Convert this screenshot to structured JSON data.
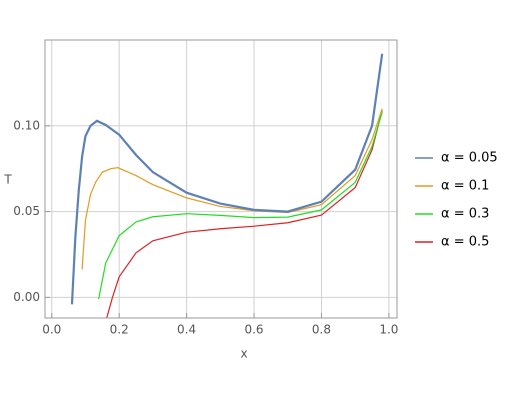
{
  "chart_data": {
    "type": "line",
    "xlabel": "x",
    "ylabel": "T",
    "xlim": [
      -0.02,
      1.024
    ],
    "ylim": [
      -0.012,
      0.15
    ],
    "xticks": [
      {
        "value": 0,
        "label": "0.0"
      },
      0.2,
      0.4,
      0.6,
      0.8,
      {
        "value": 1,
        "label": "1.0"
      }
    ],
    "yticks": [
      {
        "value": 0,
        "label": "0.00"
      },
      {
        "value": 0.05,
        "label": "0.05"
      },
      {
        "value": 0.1,
        "label": "0.10"
      }
    ],
    "grid": true,
    "legend": "right",
    "series": [
      {
        "name": "α = 0.05",
        "color": "#5e81b5",
        "x": [
          0.06,
          0.07,
          0.08,
          0.09,
          0.1,
          0.115,
          0.134,
          0.16,
          0.2,
          0.25,
          0.3,
          0.4,
          0.5,
          0.6,
          0.7,
          0.8,
          0.9,
          0.95,
          0.98
        ],
        "values": [
          -0.004,
          0.035,
          0.062,
          0.082,
          0.094,
          0.1,
          0.1029,
          0.1005,
          0.0948,
          0.083,
          0.073,
          0.061,
          0.0547,
          0.051,
          0.05,
          0.0558,
          0.0744,
          0.1,
          0.142
        ]
      },
      {
        "name": "α = 0.1",
        "color": "#e19c24",
        "x": [
          0.09,
          0.1,
          0.115,
          0.13,
          0.15,
          0.175,
          0.196,
          0.25,
          0.3,
          0.4,
          0.5,
          0.6,
          0.7,
          0.8,
          0.9,
          0.95,
          0.98
        ],
        "values": [
          0.0163,
          0.045,
          0.06,
          0.067,
          0.073,
          0.075,
          0.0756,
          0.071,
          0.0657,
          0.058,
          0.053,
          0.0505,
          0.0495,
          0.054,
          0.071,
          0.092,
          0.11
        ]
      },
      {
        "name": "α = 0.3",
        "color": "#22dd22",
        "x": [
          0.139,
          0.16,
          0.2,
          0.25,
          0.3,
          0.4,
          0.5,
          0.6,
          0.7,
          0.8,
          0.9,
          0.95,
          0.98
        ],
        "values": [
          -0.001,
          0.02,
          0.036,
          0.044,
          0.047,
          0.0488,
          0.0478,
          0.0465,
          0.0468,
          0.051,
          0.067,
          0.088,
          0.108
        ]
      },
      {
        "name": "α = 0.5",
        "color": "#dd2222",
        "x": [
          0.163,
          0.18,
          0.2,
          0.25,
          0.3,
          0.4,
          0.5,
          0.6,
          0.7,
          0.8,
          0.9,
          0.95,
          0.98
        ],
        "values": [
          -0.012,
          0.0,
          0.012,
          0.026,
          0.033,
          0.038,
          0.04,
          0.0415,
          0.0435,
          0.048,
          0.064,
          0.086,
          0.109
        ]
      }
    ]
  }
}
